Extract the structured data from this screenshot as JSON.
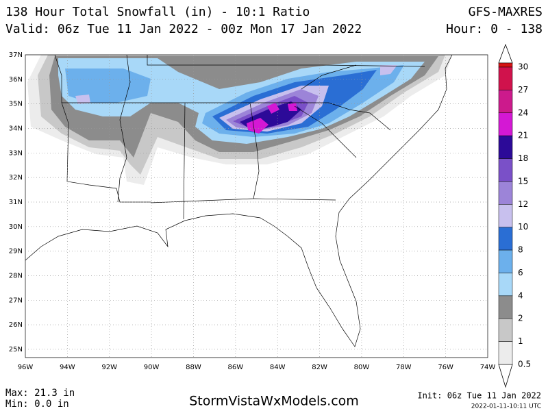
{
  "header": {
    "title": "138 Hour Total Snowfall (in) - 10:1 Ratio",
    "valid": "Valid: 06z Tue 11 Jan 2022 - 00z Mon 17 Jan 2022",
    "model": "GFS-MAXRES",
    "hours": "Hour: 0 - 138"
  },
  "latitudes": [
    "37N",
    "36N",
    "35N",
    "34N",
    "33N",
    "32N",
    "31N",
    "30N",
    "29N",
    "28N",
    "27N",
    "26N",
    "25N"
  ],
  "longitudes": [
    "96W",
    "94W",
    "92W",
    "90W",
    "88W",
    "86W",
    "84W",
    "82W",
    "80W",
    "78W",
    "76W",
    "74W"
  ],
  "legend": [
    {
      "label": "30",
      "color": "#d41414"
    },
    {
      "label": "27",
      "color": "#d0124c"
    },
    {
      "label": "24",
      "color": "#cc1a8c"
    },
    {
      "label": "21",
      "color": "#d418d4"
    },
    {
      "label": "18",
      "color": "#2c0a98"
    },
    {
      "label": "15",
      "color": "#7a50c8"
    },
    {
      "label": "12",
      "color": "#9c84d8"
    },
    {
      "label": "10",
      "color": "#c8c0ee"
    },
    {
      "label": "8",
      "color": "#2a6ed4"
    },
    {
      "label": "6",
      "color": "#6cb0ec"
    },
    {
      "label": "4",
      "color": "#a8d8f8"
    },
    {
      "label": "2",
      "color": "#8c8c8c"
    },
    {
      "label": "1",
      "color": "#c8c8c8"
    },
    {
      "label": "0.5",
      "color": "#ececec"
    }
  ],
  "footer": {
    "max": "Max: 21.3 in",
    "min": "Min: 0.0 in",
    "site": "StormVistaWxModels.com",
    "init": "Init: 06z Tue 11 Jan 2022",
    "stamp": "2022-01-11-10:11 UTC"
  }
}
